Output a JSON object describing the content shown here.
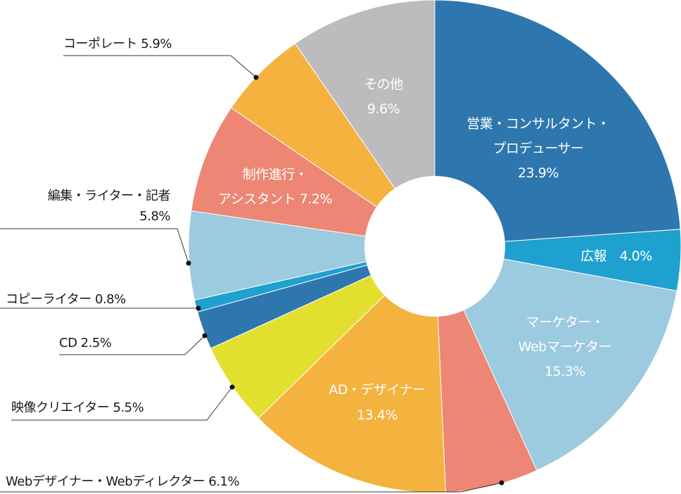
{
  "chart_data": {
    "type": "pie",
    "variant": "donut",
    "title": "",
    "slices": [
      {
        "name": "営業・コンサルタント・プロデューサー",
        "lines": [
          "営業・コンサルタント・",
          "プロデューサー",
          "23.9%"
        ],
        "value": 23.9,
        "color": "#2e77ae",
        "label_mode": "inside"
      },
      {
        "name": "広報",
        "lines": [
          "広報　4.0%"
        ],
        "value": 4.0,
        "color": "#1ea1cf",
        "label_mode": "inside"
      },
      {
        "name": "マーケター・Webマーケター",
        "lines": [
          "マーケター・",
          "Webマーケター",
          "15.3%"
        ],
        "value": 15.3,
        "color": "#9ccade",
        "label_mode": "inside"
      },
      {
        "name": "Webデザイナー・Webディレクター",
        "lines": [
          "Webデザイナー・Webディレクター 6.1%"
        ],
        "value": 6.1,
        "color": "#ed8674",
        "label_mode": "outside"
      },
      {
        "name": "AD・デザイナー",
        "lines": [
          "AD・デザイナー",
          "13.4%"
        ],
        "value": 13.4,
        "color": "#f4b23f",
        "label_mode": "inside"
      },
      {
        "name": "映像クリエイター",
        "lines": [
          "映像クリエイター 5.5%"
        ],
        "value": 5.5,
        "color": "#e3df2e",
        "label_mode": "outside"
      },
      {
        "name": "CD",
        "lines": [
          "CD 2.5%"
        ],
        "value": 2.5,
        "color": "#2e77ae",
        "label_mode": "outside"
      },
      {
        "name": "コピーライター",
        "lines": [
          "コピーライター 0.8%"
        ],
        "value": 0.8,
        "color": "#1ea1cf",
        "label_mode": "outside"
      },
      {
        "name": "編集・ライター・記者",
        "lines": [
          "編集・ライター・記者",
          "5.8%"
        ],
        "value": 5.8,
        "color": "#9ccade",
        "label_mode": "outside"
      },
      {
        "name": "制作進行・アシスタント",
        "lines": [
          "制作進行・",
          "アシスタント 7.2%"
        ],
        "value": 7.2,
        "color": "#ed8674",
        "label_mode": "inside"
      },
      {
        "name": "コーポレート",
        "lines": [
          "コーポレート 5.9%"
        ],
        "value": 5.9,
        "color": "#f4b23f",
        "label_mode": "outside"
      },
      {
        "name": "その他",
        "lines": [
          "その他",
          "9.6%"
        ],
        "value": 9.6,
        "color": "#bcbcbe",
        "label_mode": "inside"
      }
    ]
  }
}
